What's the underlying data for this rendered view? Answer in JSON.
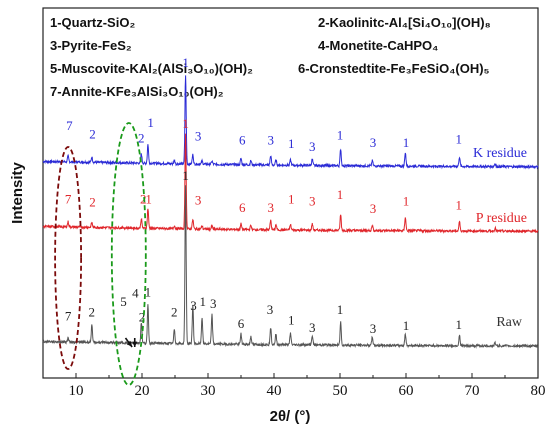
{
  "chart_data": {
    "type": "line",
    "xlabel": "2θ/ (°)",
    "ylabel": "Intensity",
    "xlim": [
      5,
      80
    ],
    "x_ticks": [
      10,
      20,
      30,
      40,
      50,
      60,
      70,
      80
    ],
    "legend": [
      "1-Quartz-SiO₂",
      "2-Kaolinitc-Al₄[Si₄O₁₀](OH)₈",
      "3-Pyrite-FeS₂",
      "4-Monetite-CaHPO₄",
      "5-Muscovite-KAl₂(AlSi₃O₁₀)(OH)₂",
      "6-Cronstedtite-Fe₃FeSiO₄(OH)₅",
      "7-Annite-KFe₃AlSi₃O₁₀(OH)₂"
    ],
    "colors": {
      "K": "#2b2bd6",
      "P": "#e0262b",
      "Raw": "#555555",
      "ellipse_red": "#7b0a0a",
      "ellipse_green": "#1a9a1a"
    },
    "peaks_x": [
      8.8,
      12.4,
      19.9,
      20.9,
      24.9,
      26.6,
      27.7,
      29.1,
      30.6,
      35.0,
      36.5,
      39.5,
      40.3,
      42.5,
      45.8,
      50.1,
      54.9,
      59.9,
      68.1,
      73.5
    ],
    "series": [
      {
        "name": "K residue",
        "baseline": [
          [
            5,
            1.0
          ],
          [
            10,
            0.96
          ],
          [
            15,
            0.9
          ],
          [
            20,
            0.84
          ],
          [
            30,
            0.74
          ],
          [
            40,
            0.66
          ],
          [
            50,
            0.6
          ],
          [
            60,
            0.56
          ],
          [
            70,
            0.53
          ],
          [
            80,
            0.5
          ]
        ],
        "peaks": [
          0.55,
          0.5,
          0.9,
          1.8,
          0.3,
          8.5,
          0.9,
          0.3,
          0.3,
          0.6,
          0.4,
          0.9,
          0.5,
          0.5,
          0.6,
          1.6,
          0.5,
          1.3,
          0.9,
          0.3
        ],
        "labels": [
          {
            "t": "7",
            "x": 9.0,
            "y": 4.0
          },
          {
            "t": "2",
            "x": 12.5,
            "y": 3.2
          },
          {
            "t": "2",
            "x": 19.9,
            "y": 2.8
          },
          {
            "t": "1",
            "x": 21.3,
            "y": 4.3
          },
          {
            "t": "1",
            "x": 26.6,
            "y": 10.0
          },
          {
            "t": "3",
            "x": 28.5,
            "y": 3.0
          },
          {
            "t": "6",
            "x": 35.2,
            "y": 2.6
          },
          {
            "t": "3",
            "x": 39.5,
            "y": 2.6
          },
          {
            "t": "1",
            "x": 42.6,
            "y": 2.3
          },
          {
            "t": "3",
            "x": 45.8,
            "y": 2.0
          },
          {
            "t": "1",
            "x": 50.0,
            "y": 3.1
          },
          {
            "t": "3",
            "x": 55.0,
            "y": 2.4
          },
          {
            "t": "1",
            "x": 60.0,
            "y": 2.4
          },
          {
            "t": "1",
            "x": 68.0,
            "y": 2.7
          }
        ]
      },
      {
        "name": "P residue",
        "baseline": [
          [
            5,
            1.0
          ],
          [
            10,
            0.95
          ],
          [
            15,
            0.9
          ],
          [
            20,
            0.84
          ],
          [
            30,
            0.75
          ],
          [
            40,
            0.68
          ],
          [
            50,
            0.63
          ],
          [
            60,
            0.6
          ],
          [
            70,
            0.57
          ],
          [
            80,
            0.55
          ]
        ],
        "peaks": [
          0.5,
          0.45,
          0.9,
          1.9,
          0.3,
          9.0,
          0.9,
          0.3,
          0.3,
          0.55,
          0.4,
          0.9,
          0.5,
          0.5,
          0.6,
          1.5,
          0.5,
          1.3,
          0.9,
          0.3
        ],
        "labels": [
          {
            "t": "7",
            "x": 8.8,
            "y": 3.2
          },
          {
            "t": "2",
            "x": 12.5,
            "y": 2.9
          },
          {
            "t": "2",
            "x": 20.2,
            "y": 3.2
          },
          {
            "t": "1",
            "x": 21.0,
            "y": 3.2
          },
          {
            "t": "1",
            "x": 26.6,
            "y": 10.4
          },
          {
            "t": "3",
            "x": 28.5,
            "y": 3.1
          },
          {
            "t": "6",
            "x": 35.2,
            "y": 2.4
          },
          {
            "t": "3",
            "x": 39.5,
            "y": 2.4
          },
          {
            "t": "1",
            "x": 42.6,
            "y": 3.2
          },
          {
            "t": "3",
            "x": 45.8,
            "y": 3.0
          },
          {
            "t": "1",
            "x": 50.0,
            "y": 3.6
          },
          {
            "t": "3",
            "x": 55.0,
            "y": 2.3
          },
          {
            "t": "1",
            "x": 60.0,
            "y": 3.0
          },
          {
            "t": "1",
            "x": 68.0,
            "y": 2.6
          }
        ]
      },
      {
        "name": "Raw",
        "baseline": [
          [
            5,
            1.0
          ],
          [
            10,
            0.95
          ],
          [
            15,
            0.9
          ],
          [
            20,
            0.85
          ],
          [
            30,
            0.77
          ],
          [
            40,
            0.71
          ],
          [
            50,
            0.66
          ],
          [
            60,
            0.62
          ],
          [
            70,
            0.59
          ],
          [
            80,
            0.57
          ]
        ],
        "peaks": [
          0.35,
          1.6,
          2.0,
          3.6,
          1.4,
          15.0,
          3.6,
          2.5,
          2.8,
          1.0,
          0.8,
          1.6,
          1.0,
          1.1,
          0.9,
          2.2,
          0.8,
          1.1,
          1.0,
          0.3
        ],
        "labels": [
          {
            "t": "7",
            "x": 8.8,
            "y": 3.0
          },
          {
            "t": "2",
            "x": 12.4,
            "y": 3.4
          },
          {
            "t": "5",
            "x": 17.2,
            "y": 4.4
          },
          {
            "t": "4",
            "x": 19.0,
            "y": 5.2
          },
          {
            "t": "2",
            "x": 20.0,
            "y": 2.9
          },
          {
            "t": "1",
            "x": 20.9,
            "y": 5.3
          },
          {
            "t": "2",
            "x": 24.9,
            "y": 3.4
          },
          {
            "t": "1",
            "x": 26.6,
            "y": 16.4
          },
          {
            "t": "3",
            "x": 27.8,
            "y": 4.0
          },
          {
            "t": "1",
            "x": 29.2,
            "y": 4.4
          },
          {
            "t": "3",
            "x": 30.8,
            "y": 4.2
          },
          {
            "t": "6",
            "x": 35.0,
            "y": 2.3
          },
          {
            "t": "3",
            "x": 39.4,
            "y": 3.6
          },
          {
            "t": "1",
            "x": 42.6,
            "y": 2.6
          },
          {
            "t": "3",
            "x": 45.8,
            "y": 1.9
          },
          {
            "t": "1",
            "x": 50.0,
            "y": 3.6
          },
          {
            "t": "3",
            "x": 55.0,
            "y": 1.8
          },
          {
            "t": "1",
            "x": 60.0,
            "y": 2.1
          },
          {
            "t": "1",
            "x": 68.0,
            "y": 2.2
          }
        ]
      }
    ]
  }
}
